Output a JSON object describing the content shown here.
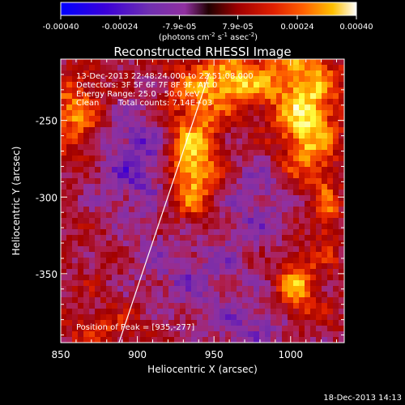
{
  "colorbar": {
    "ticks": [
      "-0.00040",
      "-0.00024",
      "-7.9e-05",
      "7.9e-05",
      "0.00024",
      "0.00040"
    ],
    "units_main": "(photons cm",
    "units_sup1": "-2",
    "units_mid": " s",
    "units_sup2": "-1",
    "units_mid2": " asec",
    "units_sup3": "-2",
    "units_end": ")"
  },
  "chart_data": {
    "type": "heatmap",
    "title": "Reconstructed RHESSI Image",
    "xlabel": "Heliocentric X (arcsec)",
    "ylabel": "Heliocentric Y (arcsec)",
    "xlim": [
      850,
      1035
    ],
    "ylim": [
      -395,
      -210
    ],
    "x_ticks": [
      "850",
      "900",
      "950",
      "1000"
    ],
    "y_ticks": [
      "-250",
      "-300",
      "-350"
    ],
    "x_tick_values": [
      850,
      900,
      950,
      1000
    ],
    "y_tick_values": [
      -250,
      -300,
      -350
    ],
    "value_range": [
      -0.0004,
      0.0004
    ],
    "colormap": [
      "#0000ff",
      "#4b00c8",
      "#7a2ea8",
      "#9030a0",
      "#b02050",
      "#a00000",
      "#e02000",
      "#ff6000",
      "#ffb000",
      "#ffff40",
      "#ffffff"
    ],
    "limb_line": [
      [
        888,
        -395
      ],
      [
        947,
        -219
      ]
    ],
    "peak": [
      935,
      -277
    ],
    "sources": [
      {
        "x": 935,
        "y": -277,
        "sx": 13,
        "sy": 30,
        "amp": 0.00042
      },
      {
        "x": 1010,
        "y": -252,
        "sx": 14,
        "sy": 42,
        "amp": 0.00036
      },
      {
        "x": 963,
        "y": -224,
        "sx": 20,
        "sy": 12,
        "amp": 0.00032
      },
      {
        "x": 860,
        "y": -245,
        "sx": 12,
        "sy": 18,
        "amp": 0.00024
      },
      {
        "x": 1005,
        "y": -360,
        "sx": 9,
        "sy": 14,
        "amp": 0.00026
      },
      {
        "x": 1025,
        "y": -310,
        "sx": 6,
        "sy": 18,
        "amp": 0.0002
      },
      {
        "x": 875,
        "y": -385,
        "sx": 18,
        "sy": 8,
        "amp": 0.00012
      },
      {
        "x": 905,
        "y": -275,
        "sx": 22,
        "sy": 26,
        "amp": -0.00022
      },
      {
        "x": 995,
        "y": -300,
        "sx": 30,
        "sy": 22,
        "amp": -0.00018
      },
      {
        "x": 935,
        "y": -345,
        "sx": 24,
        "sy": 24,
        "amp": -0.00016
      },
      {
        "x": 975,
        "y": -385,
        "sx": 20,
        "sy": 12,
        "amp": -0.00015
      }
    ],
    "info": {
      "line1": "13-Dec-2013 22:48:24.000 to 22:51:08.000",
      "line2": "Detectors: 3F 5F 6F 7F 8F 9F, Att 0",
      "line3": "Energy Range: 25.0 - 50.0 keV",
      "line4_a": "Clean",
      "line4_b": "Total counts: 7.14E+03",
      "peak_label": "Position of Peak = [935,-277]"
    }
  },
  "footer": {
    "timestamp": "18-Dec-2013 14:13"
  }
}
